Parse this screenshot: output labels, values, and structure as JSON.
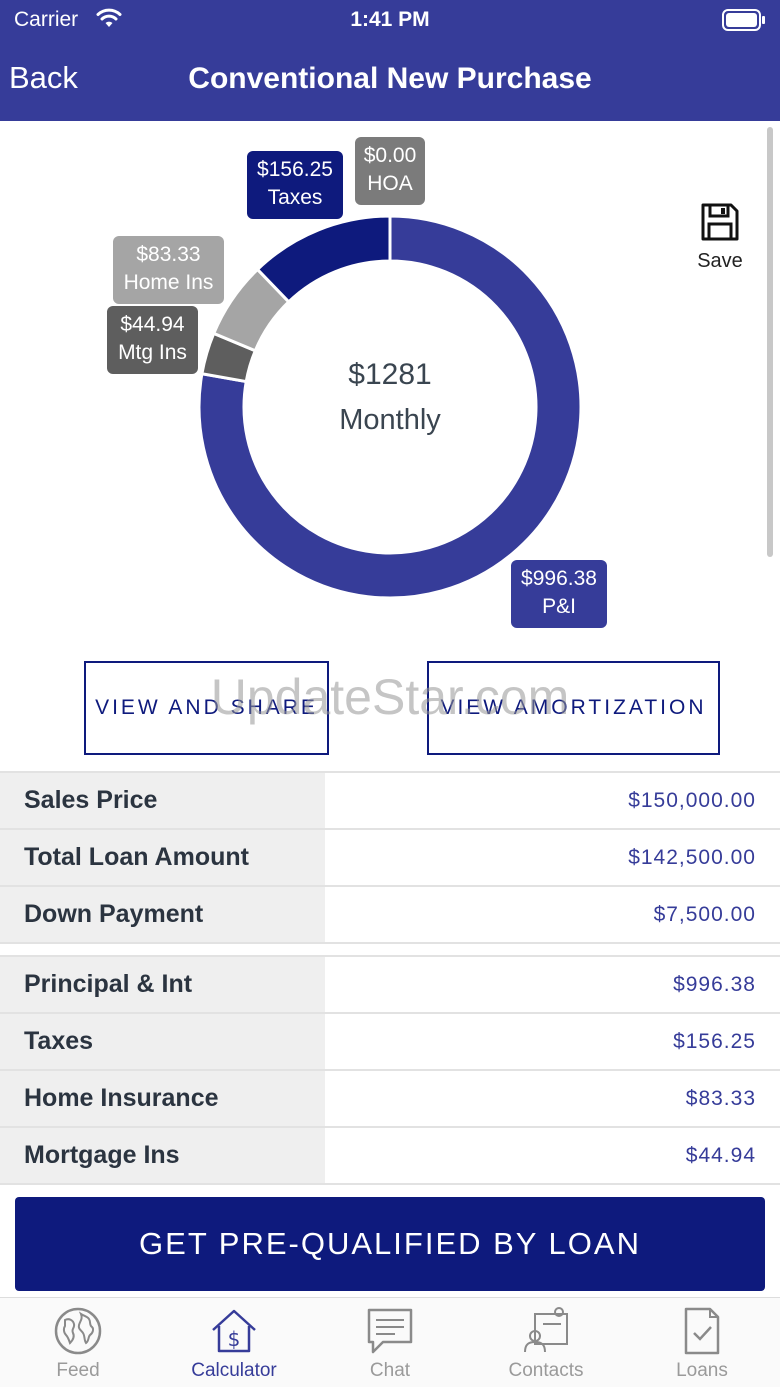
{
  "status_bar": {
    "carrier": "Carrier",
    "time": "1:41 PM"
  },
  "nav": {
    "back_label": "Back",
    "title": "Conventional New Purchase"
  },
  "chart": {
    "center_amount": "$1281",
    "center_label": "Monthly",
    "save_label": "Save"
  },
  "chart_data": {
    "type": "pie",
    "title": "",
    "slices": [
      {
        "label": "P&I",
        "value": 996.38,
        "display": "$996.38",
        "color": "#363c99"
      },
      {
        "label": "Mtg Ins",
        "value": 44.94,
        "display": "$44.94",
        "color": "#5e5e5e"
      },
      {
        "label": "Home Ins",
        "value": 83.33,
        "display": "$83.33",
        "color": "#a5a5a5"
      },
      {
        "label": "Taxes",
        "value": 156.25,
        "display": "$156.25",
        "color": "#0e1a7d"
      },
      {
        "label": "HOA",
        "value": 0.0,
        "display": "$0.00",
        "color": "#7b7b7b"
      }
    ]
  },
  "buttons": {
    "view_share": "VIEW AND SHARE",
    "view_amortization": "VIEW AMORTIZATION",
    "cta": "GET PRE-QUALIFIED BY LOAN"
  },
  "watermark": "UpdateStar.com",
  "summary_rows": [
    {
      "label": "Sales Price",
      "value": "$150,000.00"
    },
    {
      "label": "Total Loan Amount",
      "value": "$142,500.00"
    },
    {
      "label": "Down Payment",
      "value": "$7,500.00"
    }
  ],
  "payment_rows": [
    {
      "label": "Principal & Int",
      "value": "$996.38"
    },
    {
      "label": "Taxes",
      "value": "$156.25"
    },
    {
      "label": "Home Insurance",
      "value": "$83.33"
    },
    {
      "label": "Mortgage Ins",
      "value": "$44.94"
    }
  ],
  "tabs": [
    {
      "label": "Feed",
      "icon": "globe-icon",
      "active": false
    },
    {
      "label": "Calculator",
      "icon": "house-dollar-icon",
      "active": true
    },
    {
      "label": "Chat",
      "icon": "chat-icon",
      "active": false
    },
    {
      "label": "Contacts",
      "icon": "contacts-icon",
      "active": false
    },
    {
      "label": "Loans",
      "icon": "document-check-icon",
      "active": false
    }
  ],
  "colors": {
    "primary": "#363c99",
    "navy": "#0e1a7d",
    "row_label_bg": "#efefef"
  }
}
